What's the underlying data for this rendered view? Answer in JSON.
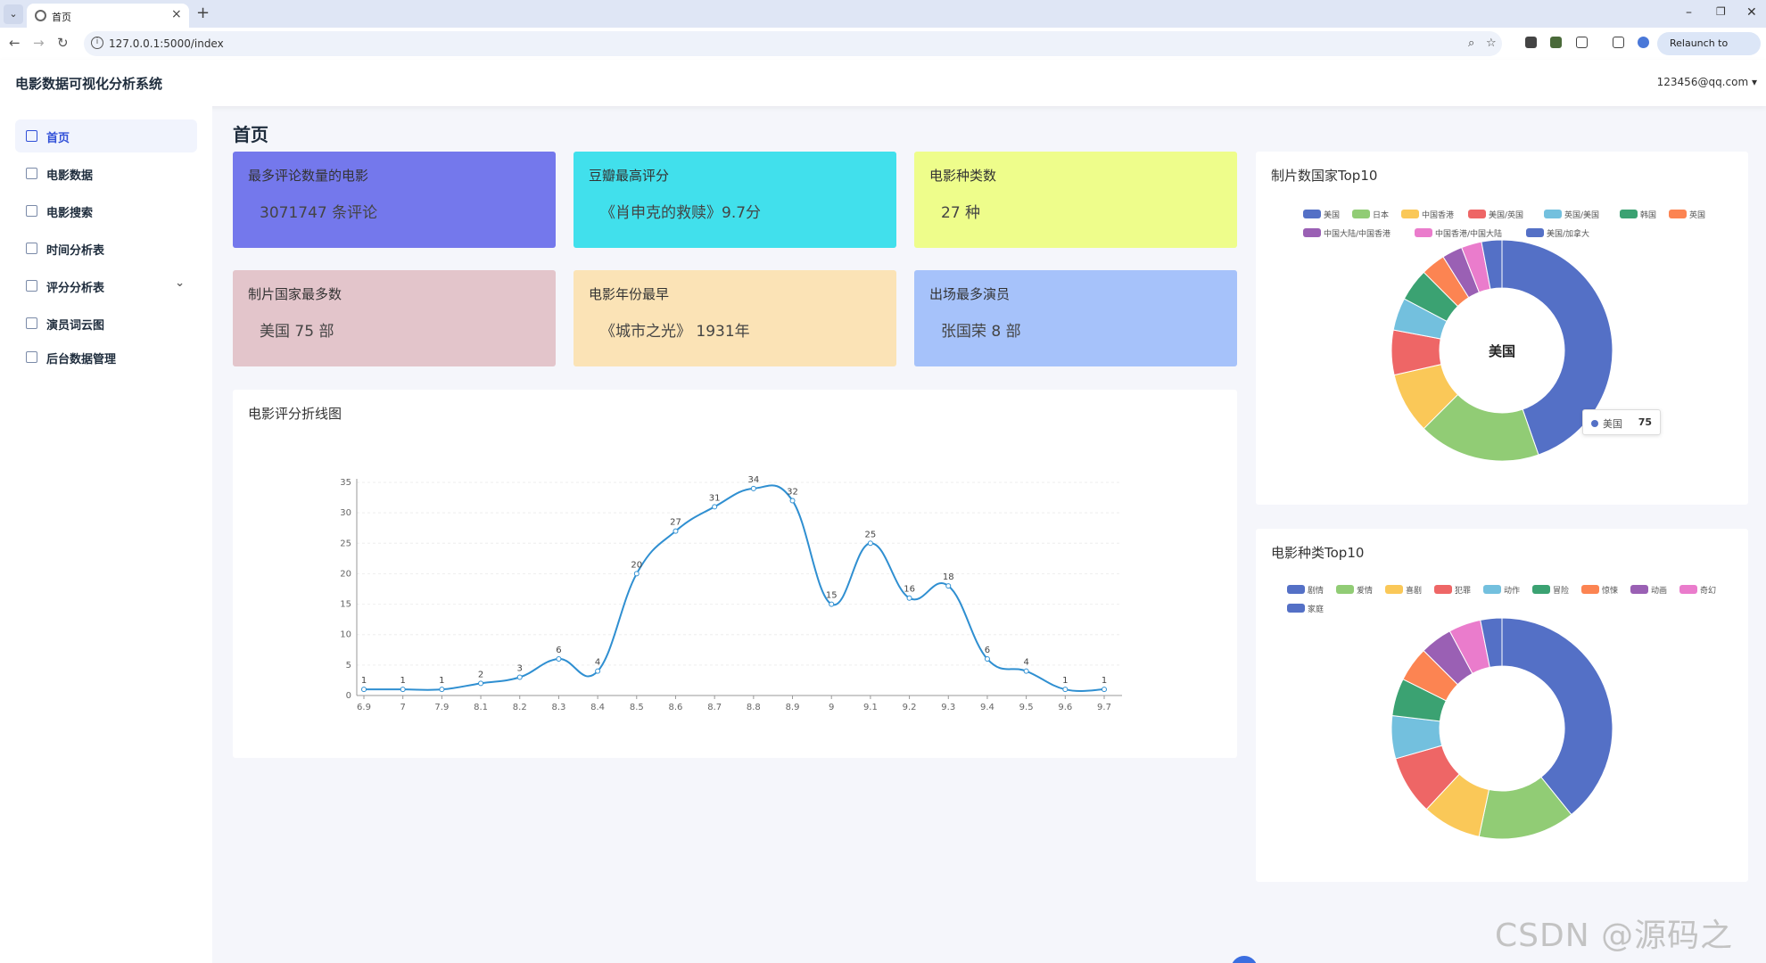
{
  "browser": {
    "tab_title": "首页",
    "tab_list_icon": "chevron-down-icon",
    "url": "127.0.0.1:5000/index",
    "relaunch_label": "Relaunch to update"
  },
  "header": {
    "brand": "电影数据可视化分析系统",
    "user": "123456@qq.com"
  },
  "sidebar": {
    "items": [
      {
        "label": "首页",
        "icon": "grid-icon"
      },
      {
        "label": "电影数据",
        "icon": "table-icon"
      },
      {
        "label": "电影搜索",
        "icon": "list-icon"
      },
      {
        "label": "时间分析表",
        "icon": "list-icon"
      },
      {
        "label": "评分分析表",
        "icon": "bar-chart-icon"
      },
      {
        "label": "演员词云图",
        "icon": "list-icon"
      },
      {
        "label": "后台数据管理",
        "icon": "list-icon"
      }
    ]
  },
  "main": {
    "page_title": "首页",
    "cards": [
      {
        "title": "最多评论数量的电影",
        "value": "3071747 条评论",
        "color": "#7478ec"
      },
      {
        "title": "豆瓣最高评分",
        "value": "《肖申克的救赎》9.7分",
        "color": "#41e0ec"
      },
      {
        "title": "电影种类数",
        "value": "27 种",
        "color": "#eefd8b"
      },
      {
        "title": "制片国家最多数",
        "value": "美国 75 部",
        "color": "#e3c5cb"
      },
      {
        "title": "电影年份最早",
        "value": "《城市之光》 1931年",
        "color": "#fbe3b6"
      },
      {
        "title": "出场最多演员",
        "value": "张国荣 8 部",
        "color": "#a6c2fa"
      }
    ],
    "line_panel_title": "电影评分折线图",
    "country_panel_title": "制片数国家Top10",
    "genre_panel_title": "电影种类Top10"
  },
  "tooltip": {
    "name": "美国",
    "value": "75"
  },
  "watermark": "CSDN @源码之家",
  "chart_data": [
    {
      "type": "line",
      "title": "电影评分折线图",
      "x": [
        "6.9",
        "7",
        "7.9",
        "8.1",
        "8.2",
        "8.3",
        "8.4",
        "8.5",
        "8.6",
        "8.7",
        "8.8",
        "8.9",
        "9",
        "9.1",
        "9.2",
        "9.3",
        "9.4",
        "9.5",
        "9.6",
        "9.7"
      ],
      "values": [
        1,
        1,
        1,
        2,
        3,
        6,
        4,
        20,
        27,
        31,
        34,
        32,
        15,
        25,
        16,
        18,
        6,
        4,
        1,
        1
      ],
      "yticks": [
        0,
        5,
        10,
        15,
        20,
        25,
        30,
        35
      ],
      "ylim": [
        0,
        35
      ],
      "smooth": true,
      "color": "#2f8fd1",
      "data_labels": true
    },
    {
      "type": "pie",
      "title": "制片数国家Top10",
      "donut": true,
      "center_label": "美国",
      "legend": [
        "美国",
        "日本",
        "中国香港",
        "美国/英国",
        "英国/美国",
        "韩国",
        "英国",
        "中国大陆/中国香港",
        "中国香港/中国大陆",
        "美国/加拿大"
      ],
      "values": [
        75,
        30,
        15,
        11,
        8,
        8,
        6,
        5,
        5,
        5
      ],
      "colors": [
        "#5470c6",
        "#91cc75",
        "#fac858",
        "#ee6666",
        "#73c0de",
        "#3ba272",
        "#fc8452",
        "#9a60b4",
        "#ea7ccc",
        "#5470c6"
      ]
    },
    {
      "type": "pie",
      "title": "电影种类Top10",
      "donut": true,
      "legend": [
        "剧情",
        "爱情",
        "喜剧",
        "犯罪",
        "动作",
        "冒险",
        "惊悚",
        "动画",
        "奇幻",
        "家庭"
      ],
      "values": [
        100,
        36,
        22,
        22,
        16,
        14,
        13,
        12,
        12,
        8
      ],
      "colors": [
        "#5470c6",
        "#91cc75",
        "#fac858",
        "#ee6666",
        "#73c0de",
        "#3ba272",
        "#fc8452",
        "#9a60b4",
        "#ea7ccc",
        "#5470c6"
      ]
    }
  ]
}
